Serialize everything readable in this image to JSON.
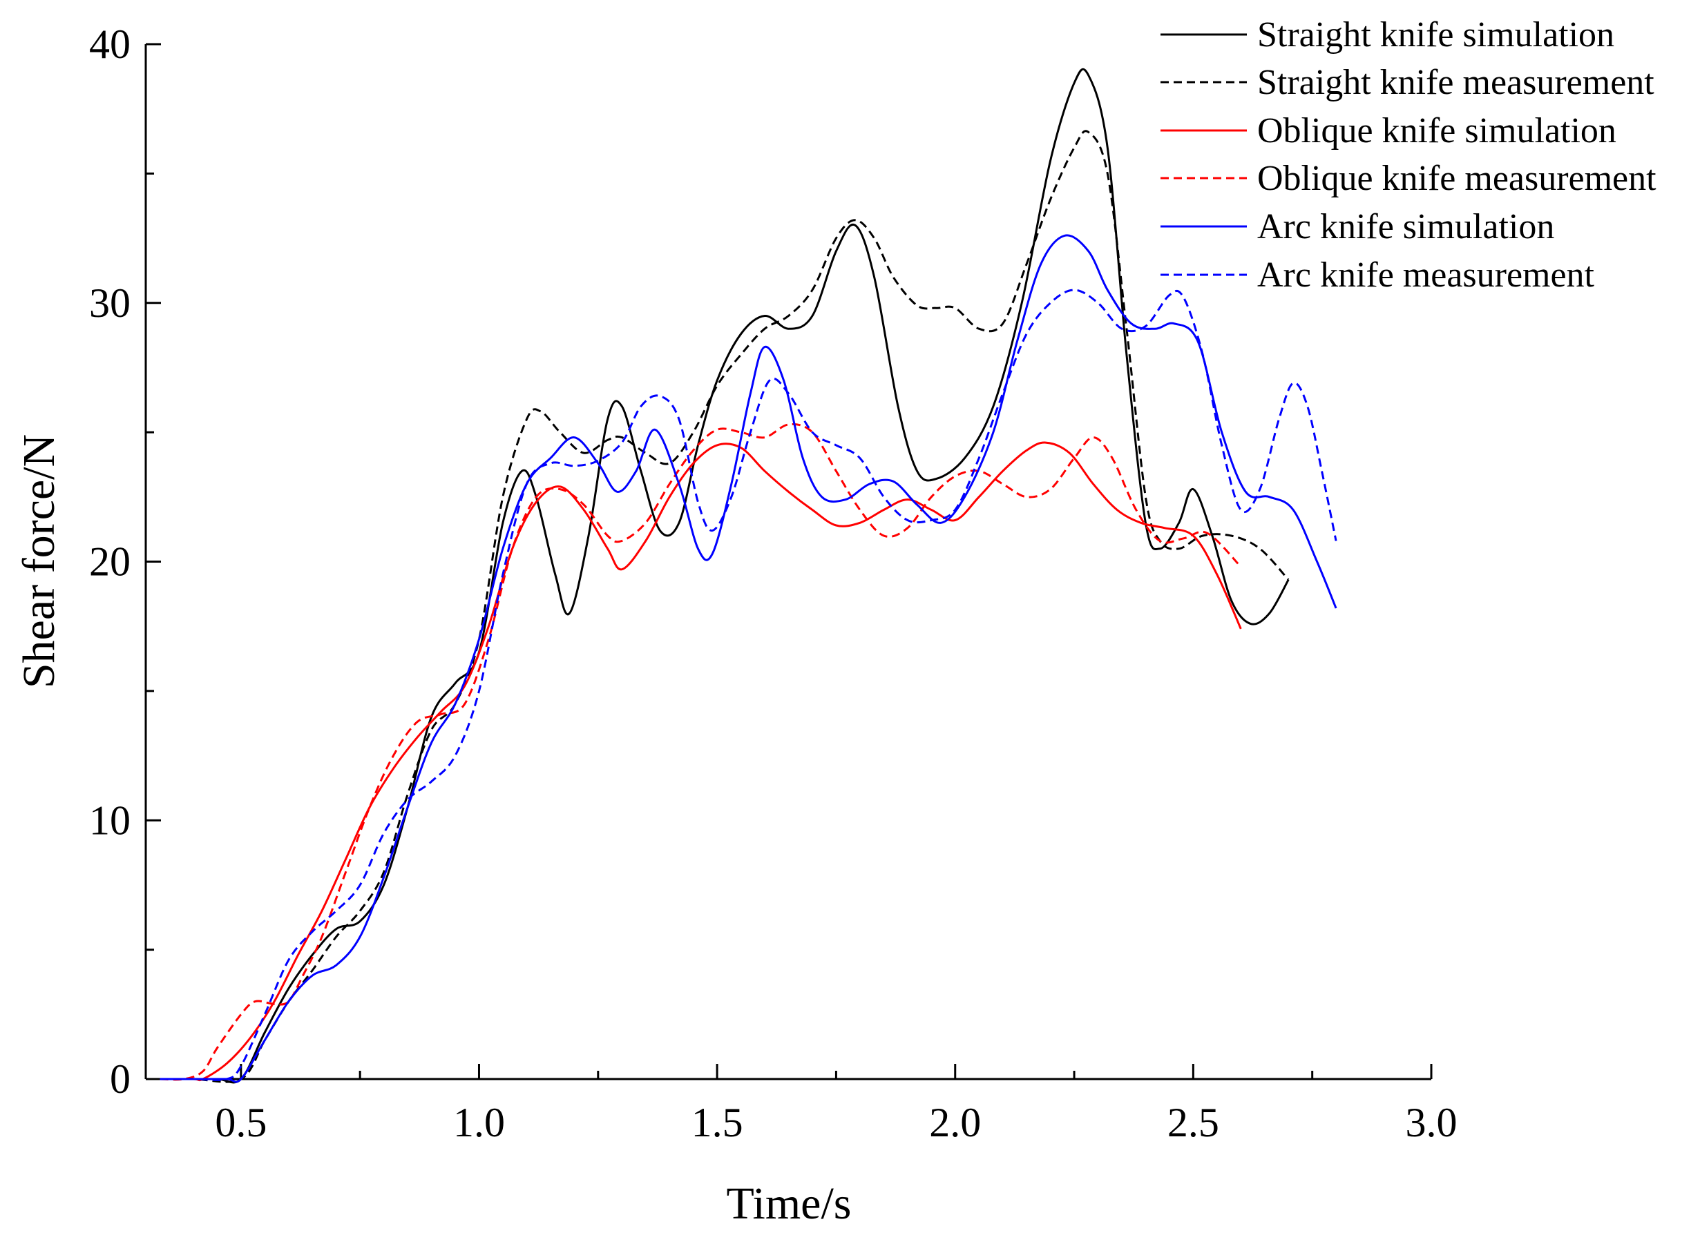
{
  "chart_data": {
    "type": "line",
    "title": "",
    "xlabel": "Time/s",
    "ylabel": "Shear force/N",
    "xlim": [
      0.3,
      3.0
    ],
    "ylim": [
      0,
      40
    ],
    "xticks": [
      0.5,
      1.0,
      1.5,
      2.0,
      2.5,
      3.0
    ],
    "xtick_labels": [
      "0.5",
      "1.0",
      "1.5",
      "2.0",
      "2.5",
      "3.0"
    ],
    "yticks": [
      0,
      10,
      20,
      30,
      40
    ],
    "ytick_labels": [
      "0",
      "10",
      "20",
      "30",
      "40"
    ],
    "grid": false,
    "legend_position": "top-right",
    "series": [
      {
        "name": "Straight knife simulation",
        "color": "#000000",
        "dashed": false,
        "points": [
          [
            0.33,
            0
          ],
          [
            0.38,
            0
          ],
          [
            0.45,
            0
          ],
          [
            0.5,
            0
          ],
          [
            0.55,
            1.8
          ],
          [
            0.6,
            3.5
          ],
          [
            0.65,
            4.8
          ],
          [
            0.7,
            5.8
          ],
          [
            0.75,
            6.1
          ],
          [
            0.8,
            7.5
          ],
          [
            0.85,
            10.5
          ],
          [
            0.9,
            14.0
          ],
          [
            0.95,
            15.3
          ],
          [
            1.0,
            16.5
          ],
          [
            1.05,
            21.5
          ],
          [
            1.09,
            23.5
          ],
          [
            1.12,
            22.5
          ],
          [
            1.16,
            19.5
          ],
          [
            1.19,
            18.0
          ],
          [
            1.23,
            21.0
          ],
          [
            1.27,
            25.5
          ],
          [
            1.3,
            26.0
          ],
          [
            1.34,
            23.5
          ],
          [
            1.38,
            21.2
          ],
          [
            1.42,
            21.5
          ],
          [
            1.46,
            24.5
          ],
          [
            1.5,
            27.0
          ],
          [
            1.55,
            28.8
          ],
          [
            1.6,
            29.5
          ],
          [
            1.65,
            29.0
          ],
          [
            1.7,
            29.5
          ],
          [
            1.75,
            32.0
          ],
          [
            1.79,
            33.0
          ],
          [
            1.83,
            31.0
          ],
          [
            1.88,
            26.0
          ],
          [
            1.92,
            23.5
          ],
          [
            1.96,
            23.2
          ],
          [
            2.02,
            24.0
          ],
          [
            2.08,
            26.0
          ],
          [
            2.14,
            30.0
          ],
          [
            2.2,
            35.5
          ],
          [
            2.25,
            38.5
          ],
          [
            2.28,
            38.8
          ],
          [
            2.32,
            36.0
          ],
          [
            2.36,
            28.0
          ],
          [
            2.4,
            21.5
          ],
          [
            2.43,
            20.5
          ],
          [
            2.47,
            21.5
          ],
          [
            2.5,
            22.8
          ],
          [
            2.54,
            21.0
          ],
          [
            2.58,
            18.5
          ],
          [
            2.62,
            17.6
          ],
          [
            2.66,
            18.0
          ],
          [
            2.7,
            19.3
          ]
        ]
      },
      {
        "name": "Straight knife measurement",
        "color": "#000000",
        "dashed": true,
        "points": [
          [
            0.33,
            0
          ],
          [
            0.4,
            0
          ],
          [
            0.5,
            0
          ],
          [
            0.55,
            1.5
          ],
          [
            0.6,
            3.0
          ],
          [
            0.65,
            4.2
          ],
          [
            0.7,
            5.5
          ],
          [
            0.75,
            6.5
          ],
          [
            0.8,
            8.0
          ],
          [
            0.85,
            11.0
          ],
          [
            0.9,
            13.5
          ],
          [
            0.95,
            14.5
          ],
          [
            1.0,
            17.0
          ],
          [
            1.05,
            22.5
          ],
          [
            1.1,
            25.5
          ],
          [
            1.13,
            25.8
          ],
          [
            1.17,
            25.0
          ],
          [
            1.22,
            24.2
          ],
          [
            1.27,
            24.7
          ],
          [
            1.3,
            24.8
          ],
          [
            1.35,
            24.2
          ],
          [
            1.4,
            23.8
          ],
          [
            1.45,
            25.0
          ],
          [
            1.5,
            26.8
          ],
          [
            1.55,
            28.0
          ],
          [
            1.6,
            29.0
          ],
          [
            1.65,
            29.5
          ],
          [
            1.7,
            30.5
          ],
          [
            1.75,
            32.5
          ],
          [
            1.79,
            33.2
          ],
          [
            1.83,
            32.5
          ],
          [
            1.87,
            31.0
          ],
          [
            1.92,
            29.9
          ],
          [
            1.96,
            29.8
          ],
          [
            2.0,
            29.8
          ],
          [
            2.05,
            29.0
          ],
          [
            2.1,
            29.2
          ],
          [
            2.15,
            31.5
          ],
          [
            2.2,
            34.0
          ],
          [
            2.25,
            36.0
          ],
          [
            2.28,
            36.6
          ],
          [
            2.32,
            35.0
          ],
          [
            2.36,
            29.0
          ],
          [
            2.4,
            22.5
          ],
          [
            2.43,
            20.8
          ],
          [
            2.47,
            20.5
          ],
          [
            2.52,
            21.0
          ],
          [
            2.58,
            21.0
          ],
          [
            2.64,
            20.5
          ],
          [
            2.7,
            19.3
          ]
        ]
      },
      {
        "name": "Oblique knife simulation",
        "color": "#ff0000",
        "dashed": false,
        "points": [
          [
            0.33,
            0
          ],
          [
            0.4,
            0
          ],
          [
            0.42,
            0
          ],
          [
            0.47,
            0.6
          ],
          [
            0.52,
            1.6
          ],
          [
            0.57,
            3.0
          ],
          [
            0.62,
            4.8
          ],
          [
            0.67,
            6.5
          ],
          [
            0.72,
            8.5
          ],
          [
            0.77,
            10.5
          ],
          [
            0.82,
            12.0
          ],
          [
            0.87,
            13.2
          ],
          [
            0.92,
            14.2
          ],
          [
            0.97,
            15.2
          ],
          [
            1.02,
            17.5
          ],
          [
            1.07,
            20.5
          ],
          [
            1.12,
            22.3
          ],
          [
            1.17,
            22.9
          ],
          [
            1.22,
            22.0
          ],
          [
            1.27,
            20.5
          ],
          [
            1.3,
            19.7
          ],
          [
            1.35,
            20.8
          ],
          [
            1.4,
            22.5
          ],
          [
            1.45,
            23.8
          ],
          [
            1.5,
            24.5
          ],
          [
            1.55,
            24.4
          ],
          [
            1.6,
            23.5
          ],
          [
            1.65,
            22.7
          ],
          [
            1.7,
            22.0
          ],
          [
            1.75,
            21.4
          ],
          [
            1.8,
            21.5
          ],
          [
            1.85,
            22.0
          ],
          [
            1.9,
            22.4
          ],
          [
            1.95,
            22.0
          ],
          [
            2.0,
            21.6
          ],
          [
            2.05,
            22.5
          ],
          [
            2.1,
            23.5
          ],
          [
            2.15,
            24.3
          ],
          [
            2.19,
            24.6
          ],
          [
            2.24,
            24.2
          ],
          [
            2.29,
            23.0
          ],
          [
            2.34,
            22.0
          ],
          [
            2.39,
            21.5
          ],
          [
            2.44,
            21.3
          ],
          [
            2.5,
            21.0
          ],
          [
            2.55,
            19.5
          ],
          [
            2.6,
            17.4
          ]
        ]
      },
      {
        "name": "Oblique knife measurement",
        "color": "#ff0000",
        "dashed": true,
        "points": [
          [
            0.33,
            0
          ],
          [
            0.38,
            0
          ],
          [
            0.42,
            0.3
          ],
          [
            0.45,
            1.2
          ],
          [
            0.5,
            2.5
          ],
          [
            0.53,
            3.0
          ],
          [
            0.57,
            2.9
          ],
          [
            0.6,
            3.0
          ],
          [
            0.63,
            4.0
          ],
          [
            0.67,
            5.5
          ],
          [
            0.72,
            8.0
          ],
          [
            0.77,
            10.5
          ],
          [
            0.82,
            12.5
          ],
          [
            0.87,
            13.8
          ],
          [
            0.92,
            14.1
          ],
          [
            0.97,
            14.5
          ],
          [
            1.02,
            17.0
          ],
          [
            1.07,
            20.5
          ],
          [
            1.12,
            22.5
          ],
          [
            1.17,
            22.8
          ],
          [
            1.22,
            22.2
          ],
          [
            1.27,
            21.0
          ],
          [
            1.3,
            20.8
          ],
          [
            1.35,
            21.5
          ],
          [
            1.4,
            23.0
          ],
          [
            1.45,
            24.3
          ],
          [
            1.5,
            25.1
          ],
          [
            1.55,
            25.0
          ],
          [
            1.6,
            24.8
          ],
          [
            1.65,
            25.3
          ],
          [
            1.7,
            25.0
          ],
          [
            1.75,
            23.5
          ],
          [
            1.8,
            22.0
          ],
          [
            1.85,
            21.0
          ],
          [
            1.9,
            21.3
          ],
          [
            1.95,
            22.5
          ],
          [
            2.0,
            23.3
          ],
          [
            2.05,
            23.5
          ],
          [
            2.1,
            23.0
          ],
          [
            2.15,
            22.5
          ],
          [
            2.2,
            22.8
          ],
          [
            2.25,
            24.0
          ],
          [
            2.29,
            24.8
          ],
          [
            2.33,
            24.0
          ],
          [
            2.38,
            22.0
          ],
          [
            2.43,
            20.8
          ],
          [
            2.48,
            20.9
          ],
          [
            2.53,
            21.1
          ],
          [
            2.6,
            19.8
          ]
        ]
      },
      {
        "name": "Arc knife simulation",
        "color": "#0000ff",
        "dashed": false,
        "points": [
          [
            0.33,
            0
          ],
          [
            0.4,
            0
          ],
          [
            0.47,
            0
          ],
          [
            0.5,
            0
          ],
          [
            0.55,
            1.5
          ],
          [
            0.6,
            3.0
          ],
          [
            0.65,
            4.0
          ],
          [
            0.7,
            4.4
          ],
          [
            0.75,
            5.5
          ],
          [
            0.8,
            7.8
          ],
          [
            0.85,
            10.5
          ],
          [
            0.9,
            13.0
          ],
          [
            0.95,
            14.5
          ],
          [
            1.0,
            17.0
          ],
          [
            1.05,
            20.5
          ],
          [
            1.1,
            23.0
          ],
          [
            1.15,
            24.0
          ],
          [
            1.2,
            24.8
          ],
          [
            1.25,
            23.8
          ],
          [
            1.29,
            22.7
          ],
          [
            1.33,
            23.5
          ],
          [
            1.37,
            25.1
          ],
          [
            1.42,
            23.0
          ],
          [
            1.46,
            20.5
          ],
          [
            1.49,
            20.3
          ],
          [
            1.53,
            23.0
          ],
          [
            1.57,
            26.5
          ],
          [
            1.6,
            28.3
          ],
          [
            1.64,
            27.0
          ],
          [
            1.68,
            24.0
          ],
          [
            1.72,
            22.5
          ],
          [
            1.77,
            22.4
          ],
          [
            1.82,
            23.0
          ],
          [
            1.87,
            23.1
          ],
          [
            1.92,
            22.2
          ],
          [
            1.97,
            21.5
          ],
          [
            2.02,
            22.5
          ],
          [
            2.08,
            25.0
          ],
          [
            2.13,
            28.5
          ],
          [
            2.18,
            31.5
          ],
          [
            2.23,
            32.6
          ],
          [
            2.28,
            32.0
          ],
          [
            2.32,
            30.5
          ],
          [
            2.37,
            29.2
          ],
          [
            2.42,
            29.0
          ],
          [
            2.46,
            29.2
          ],
          [
            2.51,
            28.5
          ],
          [
            2.56,
            25.0
          ],
          [
            2.61,
            22.7
          ],
          [
            2.66,
            22.5
          ],
          [
            2.71,
            22.0
          ],
          [
            2.76,
            20.0
          ],
          [
            2.8,
            18.2
          ]
        ]
      },
      {
        "name": "Arc knife measurement",
        "color": "#0000ff",
        "dashed": true,
        "points": [
          [
            0.33,
            0
          ],
          [
            0.4,
            0
          ],
          [
            0.47,
            0
          ],
          [
            0.5,
            0.5
          ],
          [
            0.55,
            2.5
          ],
          [
            0.6,
            4.6
          ],
          [
            0.65,
            5.7
          ],
          [
            0.7,
            6.5
          ],
          [
            0.75,
            7.5
          ],
          [
            0.8,
            9.5
          ],
          [
            0.85,
            10.8
          ],
          [
            0.9,
            11.5
          ],
          [
            0.95,
            12.5
          ],
          [
            1.0,
            15.0
          ],
          [
            1.05,
            19.5
          ],
          [
            1.1,
            23.0
          ],
          [
            1.15,
            23.8
          ],
          [
            1.2,
            23.7
          ],
          [
            1.25,
            23.9
          ],
          [
            1.3,
            24.6
          ],
          [
            1.34,
            26.0
          ],
          [
            1.38,
            26.4
          ],
          [
            1.42,
            25.5
          ],
          [
            1.46,
            22.3
          ],
          [
            1.49,
            21.2
          ],
          [
            1.53,
            22.5
          ],
          [
            1.57,
            25.0
          ],
          [
            1.61,
            27.0
          ],
          [
            1.65,
            26.5
          ],
          [
            1.7,
            25.0
          ],
          [
            1.75,
            24.5
          ],
          [
            1.8,
            24.0
          ],
          [
            1.85,
            22.5
          ],
          [
            1.9,
            21.6
          ],
          [
            1.95,
            21.6
          ],
          [
            2.0,
            22.0
          ],
          [
            2.05,
            24.0
          ],
          [
            2.1,
            26.5
          ],
          [
            2.15,
            28.8
          ],
          [
            2.2,
            30.0
          ],
          [
            2.25,
            30.5
          ],
          [
            2.3,
            30.0
          ],
          [
            2.35,
            29.0
          ],
          [
            2.4,
            29.1
          ],
          [
            2.45,
            30.3
          ],
          [
            2.48,
            30.2
          ],
          [
            2.52,
            28.0
          ],
          [
            2.56,
            24.5
          ],
          [
            2.6,
            22.0
          ],
          [
            2.64,
            22.8
          ],
          [
            2.68,
            25.5
          ],
          [
            2.71,
            26.9
          ],
          [
            2.74,
            26.0
          ],
          [
            2.77,
            23.5
          ],
          [
            2.8,
            20.8
          ]
        ]
      }
    ]
  }
}
